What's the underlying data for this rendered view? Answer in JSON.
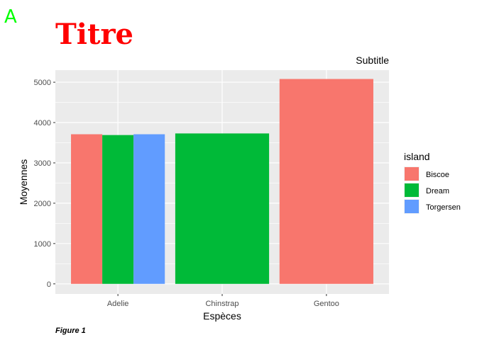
{
  "tag": "A",
  "caption": "Figure 1",
  "chart_data": {
    "type": "bar",
    "title": "Titre",
    "subtitle": "Subtitle",
    "xlabel": "Espèces",
    "ylabel": "Moyennes",
    "categories": [
      "Adelie",
      "Chinstrap",
      "Gentoo"
    ],
    "ylim": [
      -250,
      5300
    ],
    "yticks": [
      0,
      1000,
      2000,
      3000,
      4000,
      5000
    ],
    "grid": true,
    "legend": {
      "title": "island",
      "placement": "right",
      "entries": [
        {
          "name": "Biscoe",
          "color": "#F8766D"
        },
        {
          "name": "Dream",
          "color": "#00BA38"
        },
        {
          "name": "Torgersen",
          "color": "#619CFF"
        }
      ]
    },
    "bars": [
      {
        "category": "Adelie",
        "island": "Biscoe",
        "value": 3710
      },
      {
        "category": "Adelie",
        "island": "Dream",
        "value": 3690
      },
      {
        "category": "Adelie",
        "island": "Torgersen",
        "value": 3710
      },
      {
        "category": "Chinstrap",
        "island": "Dream",
        "value": 3730
      },
      {
        "category": "Gentoo",
        "island": "Biscoe",
        "value": 5080
      }
    ],
    "colors": {
      "panel_background": "#EBEBEB",
      "grid": "#FFFFFF"
    }
  }
}
